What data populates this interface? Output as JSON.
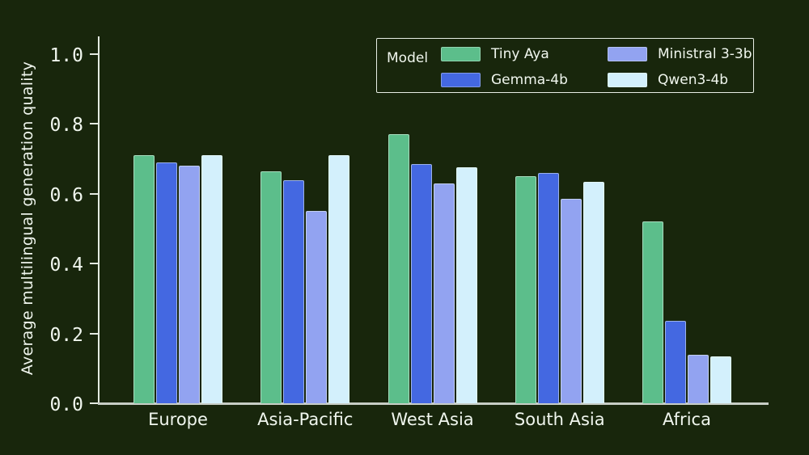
{
  "page": {
    "background_color": "#18260C",
    "text_color": "#F0F6EE",
    "axis_color": "#E3EAE1",
    "x_axis_color": "#C7CDC5"
  },
  "chart_data": {
    "type": "bar",
    "title": "",
    "xlabel": "",
    "ylabel": "Average multilingual generation quality",
    "ylim": [
      0.0,
      1.0
    ],
    "yticks": [
      0.0,
      0.2,
      0.4,
      0.6,
      0.8,
      1.0
    ],
    "grid": false,
    "legend_title": "Model",
    "legend_position": "upper right",
    "categories": [
      "Europe",
      "Asia-Pacific",
      "West Asia",
      "South Asia",
      "Africa"
    ],
    "series": [
      {
        "name": "Tiny Aya",
        "color": "#5CBE8B",
        "values": [
          0.71,
          0.665,
          0.77,
          0.65,
          0.52
        ]
      },
      {
        "name": "Gemma-4b",
        "color": "#4468E1",
        "values": [
          0.69,
          0.64,
          0.685,
          0.66,
          0.235
        ]
      },
      {
        "name": "Ministral 3-3b",
        "color": "#92A3F1",
        "values": [
          0.68,
          0.55,
          0.63,
          0.585,
          0.14
        ]
      },
      {
        "name": "Qwen3-4b",
        "color": "#D3F0FC",
        "values": [
          0.71,
          0.71,
          0.675,
          0.635,
          0.135
        ]
      }
    ]
  }
}
